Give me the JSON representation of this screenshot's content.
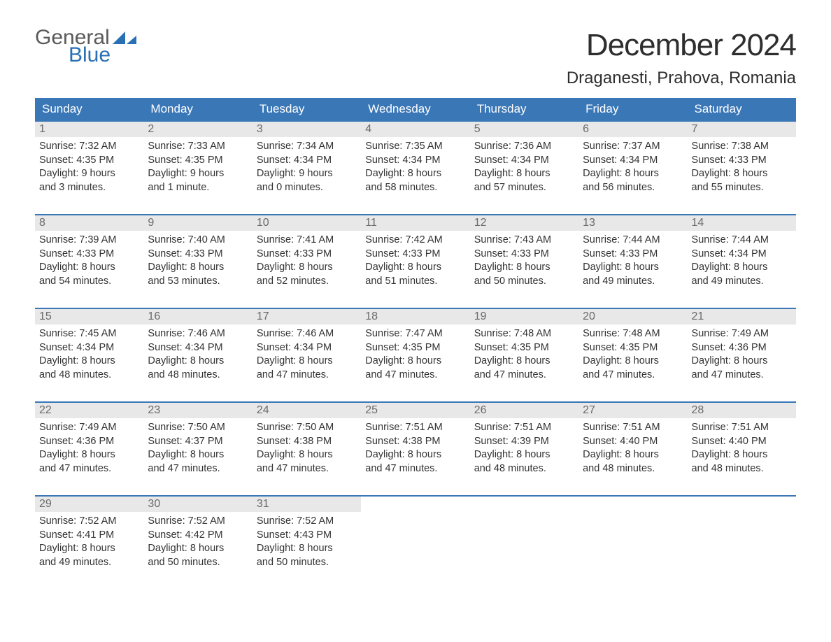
{
  "logo": {
    "word1": "General",
    "word2": "Blue"
  },
  "title": "December 2024",
  "location": "Draganesti, Prahova, Romania",
  "colors": {
    "header_bg": "#3a77b7",
    "header_text": "#ffffff",
    "daynum_bg": "#e8e8e8",
    "daynum_text": "#6a6a6a",
    "body_text": "#333333",
    "logo_gray": "#5a5a5a",
    "logo_blue": "#296fb3",
    "week_border": "#3a77b7",
    "background": "#ffffff"
  },
  "typography": {
    "title_fontsize": 44,
    "location_fontsize": 24,
    "dow_fontsize": 17,
    "daynum_fontsize": 16,
    "body_fontsize": 14.5,
    "logo_fontsize": 30,
    "font_family": "Arial"
  },
  "dow": [
    "Sunday",
    "Monday",
    "Tuesday",
    "Wednesday",
    "Thursday",
    "Friday",
    "Saturday"
  ],
  "weeks": [
    [
      {
        "n": "1",
        "sr": "Sunrise: 7:32 AM",
        "ss": "Sunset: 4:35 PM",
        "d1": "Daylight: 9 hours",
        "d2": "and 3 minutes."
      },
      {
        "n": "2",
        "sr": "Sunrise: 7:33 AM",
        "ss": "Sunset: 4:35 PM",
        "d1": "Daylight: 9 hours",
        "d2": "and 1 minute."
      },
      {
        "n": "3",
        "sr": "Sunrise: 7:34 AM",
        "ss": "Sunset: 4:34 PM",
        "d1": "Daylight: 9 hours",
        "d2": "and 0 minutes."
      },
      {
        "n": "4",
        "sr": "Sunrise: 7:35 AM",
        "ss": "Sunset: 4:34 PM",
        "d1": "Daylight: 8 hours",
        "d2": "and 58 minutes."
      },
      {
        "n": "5",
        "sr": "Sunrise: 7:36 AM",
        "ss": "Sunset: 4:34 PM",
        "d1": "Daylight: 8 hours",
        "d2": "and 57 minutes."
      },
      {
        "n": "6",
        "sr": "Sunrise: 7:37 AM",
        "ss": "Sunset: 4:34 PM",
        "d1": "Daylight: 8 hours",
        "d2": "and 56 minutes."
      },
      {
        "n": "7",
        "sr": "Sunrise: 7:38 AM",
        "ss": "Sunset: 4:33 PM",
        "d1": "Daylight: 8 hours",
        "d2": "and 55 minutes."
      }
    ],
    [
      {
        "n": "8",
        "sr": "Sunrise: 7:39 AM",
        "ss": "Sunset: 4:33 PM",
        "d1": "Daylight: 8 hours",
        "d2": "and 54 minutes."
      },
      {
        "n": "9",
        "sr": "Sunrise: 7:40 AM",
        "ss": "Sunset: 4:33 PM",
        "d1": "Daylight: 8 hours",
        "d2": "and 53 minutes."
      },
      {
        "n": "10",
        "sr": "Sunrise: 7:41 AM",
        "ss": "Sunset: 4:33 PM",
        "d1": "Daylight: 8 hours",
        "d2": "and 52 minutes."
      },
      {
        "n": "11",
        "sr": "Sunrise: 7:42 AM",
        "ss": "Sunset: 4:33 PM",
        "d1": "Daylight: 8 hours",
        "d2": "and 51 minutes."
      },
      {
        "n": "12",
        "sr": "Sunrise: 7:43 AM",
        "ss": "Sunset: 4:33 PM",
        "d1": "Daylight: 8 hours",
        "d2": "and 50 minutes."
      },
      {
        "n": "13",
        "sr": "Sunrise: 7:44 AM",
        "ss": "Sunset: 4:33 PM",
        "d1": "Daylight: 8 hours",
        "d2": "and 49 minutes."
      },
      {
        "n": "14",
        "sr": "Sunrise: 7:44 AM",
        "ss": "Sunset: 4:34 PM",
        "d1": "Daylight: 8 hours",
        "d2": "and 49 minutes."
      }
    ],
    [
      {
        "n": "15",
        "sr": "Sunrise: 7:45 AM",
        "ss": "Sunset: 4:34 PM",
        "d1": "Daylight: 8 hours",
        "d2": "and 48 minutes."
      },
      {
        "n": "16",
        "sr": "Sunrise: 7:46 AM",
        "ss": "Sunset: 4:34 PM",
        "d1": "Daylight: 8 hours",
        "d2": "and 48 minutes."
      },
      {
        "n": "17",
        "sr": "Sunrise: 7:46 AM",
        "ss": "Sunset: 4:34 PM",
        "d1": "Daylight: 8 hours",
        "d2": "and 47 minutes."
      },
      {
        "n": "18",
        "sr": "Sunrise: 7:47 AM",
        "ss": "Sunset: 4:35 PM",
        "d1": "Daylight: 8 hours",
        "d2": "and 47 minutes."
      },
      {
        "n": "19",
        "sr": "Sunrise: 7:48 AM",
        "ss": "Sunset: 4:35 PM",
        "d1": "Daylight: 8 hours",
        "d2": "and 47 minutes."
      },
      {
        "n": "20",
        "sr": "Sunrise: 7:48 AM",
        "ss": "Sunset: 4:35 PM",
        "d1": "Daylight: 8 hours",
        "d2": "and 47 minutes."
      },
      {
        "n": "21",
        "sr": "Sunrise: 7:49 AM",
        "ss": "Sunset: 4:36 PM",
        "d1": "Daylight: 8 hours",
        "d2": "and 47 minutes."
      }
    ],
    [
      {
        "n": "22",
        "sr": "Sunrise: 7:49 AM",
        "ss": "Sunset: 4:36 PM",
        "d1": "Daylight: 8 hours",
        "d2": "and 47 minutes."
      },
      {
        "n": "23",
        "sr": "Sunrise: 7:50 AM",
        "ss": "Sunset: 4:37 PM",
        "d1": "Daylight: 8 hours",
        "d2": "and 47 minutes."
      },
      {
        "n": "24",
        "sr": "Sunrise: 7:50 AM",
        "ss": "Sunset: 4:38 PM",
        "d1": "Daylight: 8 hours",
        "d2": "and 47 minutes."
      },
      {
        "n": "25",
        "sr": "Sunrise: 7:51 AM",
        "ss": "Sunset: 4:38 PM",
        "d1": "Daylight: 8 hours",
        "d2": "and 47 minutes."
      },
      {
        "n": "26",
        "sr": "Sunrise: 7:51 AM",
        "ss": "Sunset: 4:39 PM",
        "d1": "Daylight: 8 hours",
        "d2": "and 48 minutes."
      },
      {
        "n": "27",
        "sr": "Sunrise: 7:51 AM",
        "ss": "Sunset: 4:40 PM",
        "d1": "Daylight: 8 hours",
        "d2": "and 48 minutes."
      },
      {
        "n": "28",
        "sr": "Sunrise: 7:51 AM",
        "ss": "Sunset: 4:40 PM",
        "d1": "Daylight: 8 hours",
        "d2": "and 48 minutes."
      }
    ],
    [
      {
        "n": "29",
        "sr": "Sunrise: 7:52 AM",
        "ss": "Sunset: 4:41 PM",
        "d1": "Daylight: 8 hours",
        "d2": "and 49 minutes."
      },
      {
        "n": "30",
        "sr": "Sunrise: 7:52 AM",
        "ss": "Sunset: 4:42 PM",
        "d1": "Daylight: 8 hours",
        "d2": "and 50 minutes."
      },
      {
        "n": "31",
        "sr": "Sunrise: 7:52 AM",
        "ss": "Sunset: 4:43 PM",
        "d1": "Daylight: 8 hours",
        "d2": "and 50 minutes."
      },
      {
        "empty": true
      },
      {
        "empty": true
      },
      {
        "empty": true
      },
      {
        "empty": true
      }
    ]
  ]
}
